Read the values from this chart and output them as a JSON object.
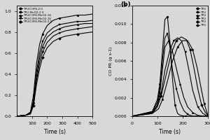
{
  "left": {
    "xlabel": "Time (s)",
    "xlim": [
      0,
      500
    ],
    "ylim": [
      0,
      1.05
    ],
    "xticks": [
      100,
      200,
      300,
      400,
      500
    ],
    "yticks": [
      0.0,
      0.2,
      0.4,
      0.6,
      0.8,
      1.0
    ],
    "legend_labels": [
      "TPU/C3F8-2.0",
      "TPU-MnO2-2.0",
      "TPU/C3F8-MnO2-16",
      "TPU/C3F8-MnO2-16",
      "TPU/C3F8-MnO2-0.5"
    ],
    "series": [
      {
        "x": [
          0,
          60,
          90,
          110,
          130,
          150,
          170,
          200,
          240,
          280,
          320,
          360,
          400,
          450,
          500
        ],
        "y": [
          0,
          0.01,
          0.04,
          0.2,
          0.5,
          0.68,
          0.78,
          0.86,
          0.91,
          0.93,
          0.94,
          0.95,
          0.96,
          0.96,
          0.97
        ],
        "marker": "o"
      },
      {
        "x": [
          0,
          60,
          90,
          110,
          130,
          150,
          170,
          200,
          240,
          280,
          320,
          360,
          400,
          450,
          500
        ],
        "y": [
          0,
          0.01,
          0.03,
          0.15,
          0.42,
          0.6,
          0.71,
          0.79,
          0.84,
          0.87,
          0.88,
          0.89,
          0.9,
          0.9,
          0.91
        ],
        "marker": "s"
      },
      {
        "x": [
          0,
          60,
          90,
          110,
          130,
          150,
          170,
          200,
          240,
          280,
          320,
          360,
          400,
          450,
          500
        ],
        "y": [
          0,
          0.01,
          0.03,
          0.13,
          0.38,
          0.55,
          0.66,
          0.75,
          0.8,
          0.83,
          0.85,
          0.86,
          0.87,
          0.88,
          0.88
        ],
        "marker": "^"
      },
      {
        "x": [
          0,
          60,
          90,
          110,
          130,
          150,
          170,
          200,
          240,
          280,
          320,
          360,
          400,
          450,
          500
        ],
        "y": [
          0,
          0.01,
          0.03,
          0.12,
          0.34,
          0.5,
          0.61,
          0.7,
          0.76,
          0.79,
          0.81,
          0.82,
          0.83,
          0.84,
          0.85
        ],
        "marker": "v"
      },
      {
        "x": [
          0,
          60,
          90,
          110,
          130,
          150,
          170,
          200,
          240,
          280,
          320,
          360,
          400,
          450,
          500
        ],
        "y": [
          0,
          0.01,
          0.02,
          0.1,
          0.3,
          0.45,
          0.56,
          0.65,
          0.71,
          0.74,
          0.76,
          0.77,
          0.78,
          0.79,
          0.8
        ],
        "marker": "D"
      }
    ]
  },
  "right": {
    "label_b": "(b)",
    "xlabel": "Time (s)",
    "ylabel": "CO PR (g s-1)",
    "xlim": [
      0,
      300
    ],
    "ylim": [
      0.0,
      0.012
    ],
    "yticks": [
      0.0,
      0.002,
      0.004,
      0.006,
      0.008,
      0.01,
      0.012
    ],
    "xticks": [
      0,
      100,
      200,
      300
    ],
    "legend_labels": [
      "TPU",
      "TPU",
      "TPU",
      "TPU",
      "TPU",
      "TPU"
    ],
    "series": [
      {
        "x": [
          0,
          80,
          100,
          110,
          120,
          130,
          140,
          150,
          160,
          170,
          180,
          190,
          210,
          240,
          270,
          300
        ],
        "y": [
          0.0,
          0.0005,
          0.0018,
          0.0035,
          0.007,
          0.0105,
          0.0108,
          0.008,
          0.004,
          0.0012,
          0.0003,
          0.0001,
          0.0,
          0.0,
          0.0,
          0.0
        ],
        "marker": "o"
      },
      {
        "x": [
          0,
          80,
          100,
          110,
          120,
          130,
          140,
          150,
          160,
          175,
          190,
          205,
          220,
          240,
          270,
          300
        ],
        "y": [
          0.0,
          0.0005,
          0.0015,
          0.003,
          0.006,
          0.0085,
          0.009,
          0.0075,
          0.005,
          0.003,
          0.0015,
          0.0006,
          0.0002,
          0.0,
          0.0,
          0.0
        ],
        "marker": "s"
      },
      {
        "x": [
          0,
          80,
          100,
          110,
          120,
          130,
          145,
          160,
          175,
          190,
          205,
          220,
          240,
          260,
          280,
          300
        ],
        "y": [
          0.0,
          0.0004,
          0.0012,
          0.0025,
          0.005,
          0.0075,
          0.0082,
          0.007,
          0.0052,
          0.0035,
          0.002,
          0.001,
          0.0004,
          0.0001,
          0.0,
          0.0
        ],
        "marker": "^"
      },
      {
        "x": [
          0,
          80,
          100,
          115,
          130,
          150,
          165,
          180,
          195,
          210,
          225,
          240,
          260,
          280,
          300
        ],
        "y": [
          0.0,
          0.0004,
          0.0012,
          0.0025,
          0.005,
          0.0072,
          0.0082,
          0.0085,
          0.0082,
          0.007,
          0.005,
          0.0028,
          0.001,
          0.0003,
          0.0
        ],
        "marker": "v"
      },
      {
        "x": [
          0,
          80,
          100,
          115,
          135,
          155,
          175,
          195,
          215,
          230,
          245,
          260,
          275,
          290,
          300
        ],
        "y": [
          0.0,
          0.0003,
          0.001,
          0.0022,
          0.0045,
          0.0068,
          0.0082,
          0.0086,
          0.0083,
          0.0072,
          0.0052,
          0.003,
          0.0012,
          0.0004,
          0.0001
        ],
        "marker": "D"
      },
      {
        "x": [
          0,
          80,
          105,
          120,
          140,
          160,
          180,
          200,
          220,
          240,
          258,
          272,
          285,
          295,
          300
        ],
        "y": [
          0.0,
          0.0003,
          0.0008,
          0.0018,
          0.0038,
          0.006,
          0.0075,
          0.0082,
          0.0082,
          0.0072,
          0.0052,
          0.0032,
          0.0014,
          0.0005,
          0.0001
        ],
        "marker": "h"
      }
    ]
  }
}
